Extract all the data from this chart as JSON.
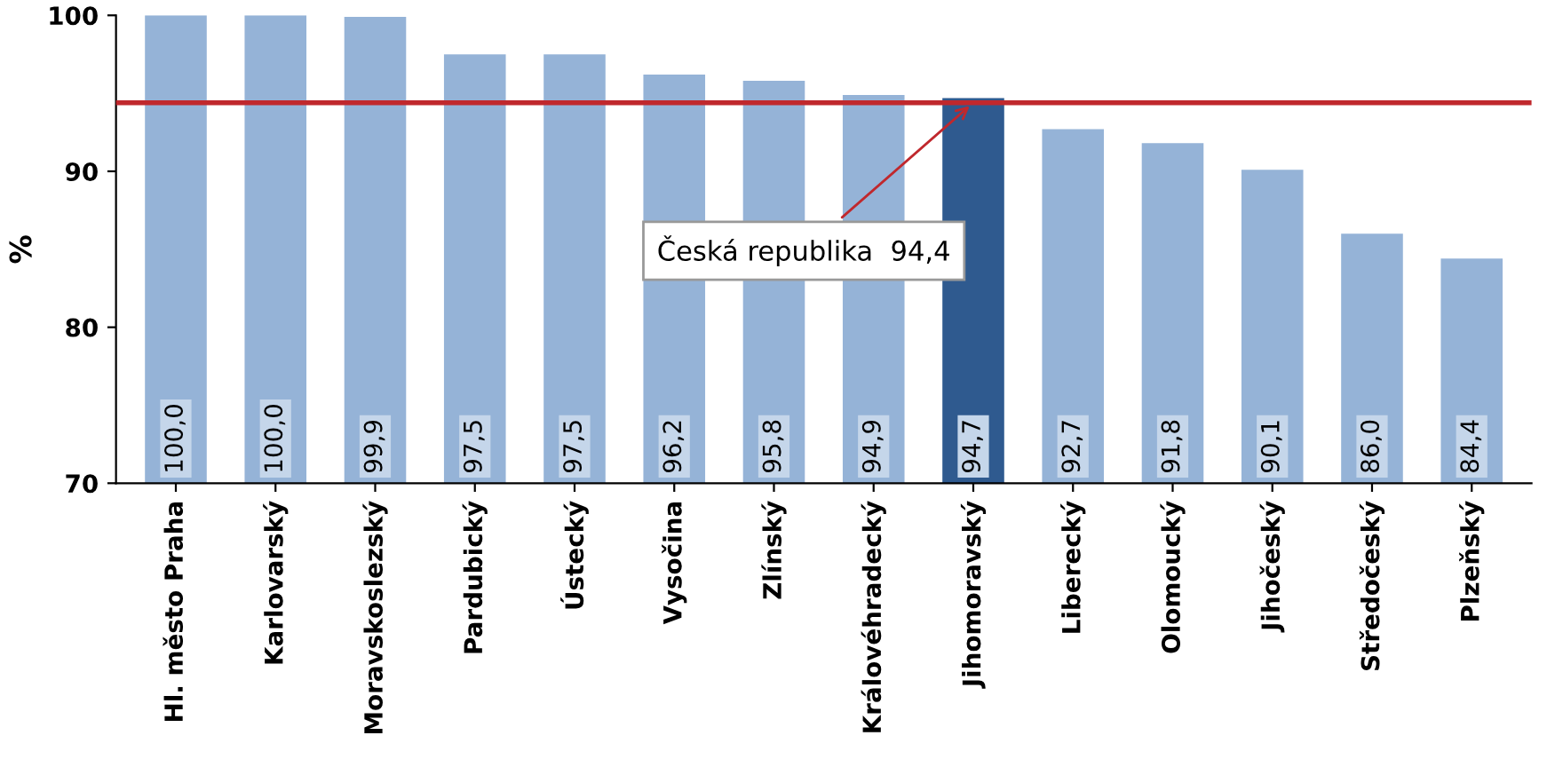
{
  "chart_data": {
    "type": "bar",
    "ylabel": "%",
    "categories": [
      "Hl. město Praha",
      "Karlovarský",
      "Moravskoslezský",
      "Pardubický",
      "Ústecký",
      "Vysočina",
      "Zlínský",
      "Královéhradecký",
      "Jihomoravský",
      "Liberecký",
      "Olomoucký",
      "Jihočeský",
      "Středočeský",
      "Plzeňský"
    ],
    "values": [
      100.0,
      100.0,
      99.9,
      97.5,
      97.5,
      96.2,
      95.8,
      94.9,
      94.7,
      92.7,
      91.8,
      90.1,
      86.0,
      84.4
    ],
    "value_labels": [
      "100,0",
      "100,0",
      "99,9",
      "97,5",
      "97,5",
      "96,2",
      "95,8",
      "94,9",
      "94,7",
      "92,7",
      "91,8",
      "90,1",
      "86,0",
      "84,4"
    ],
    "colors": [
      "#95b3d7",
      "#95b3d7",
      "#95b3d7",
      "#95b3d7",
      "#95b3d7",
      "#95b3d7",
      "#95b3d7",
      "#95b3d7",
      "#2f5a8f",
      "#95b3d7",
      "#95b3d7",
      "#95b3d7",
      "#95b3d7",
      "#95b3d7"
    ],
    "ylim": [
      70,
      100
    ],
    "yticks": [
      70,
      80,
      90,
      100
    ],
    "grid": false,
    "legend": false,
    "ref_lines": [
      {
        "axis": "y",
        "value": 94.4,
        "label": "Česká republika  94,4",
        "color": "#c0282d",
        "line_style": "solid"
      }
    ]
  }
}
